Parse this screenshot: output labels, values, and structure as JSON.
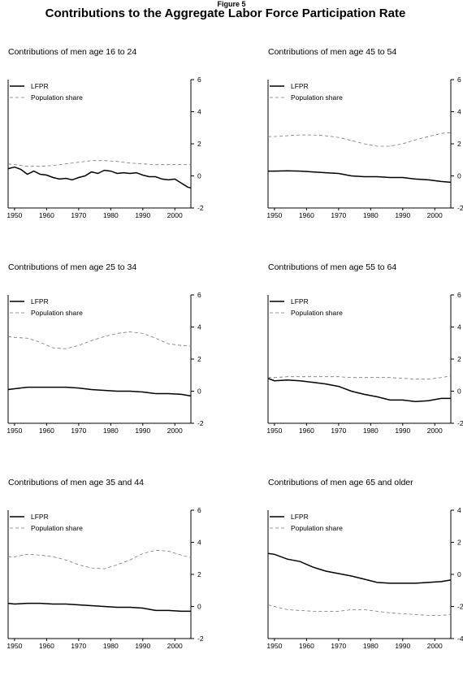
{
  "figure_label": "Figure 5",
  "title": "Contributions to the Aggregate Labor Force Participation Rate",
  "chart_data": [
    {
      "type": "line",
      "title": "Contributions of men age 16 to 24",
      "xlim": [
        1948,
        2005
      ],
      "xticks": [
        1950,
        1960,
        1970,
        1980,
        1990,
        2000
      ],
      "ylim": [
        -2,
        6
      ],
      "yticks": [
        -2,
        0,
        2,
        4,
        6
      ],
      "legend_position": "top-left",
      "series": [
        {
          "name": "LFPR",
          "style": "solid",
          "x": [
            1948,
            1950,
            1952,
            1954,
            1956,
            1958,
            1960,
            1962,
            1964,
            1966,
            1968,
            1970,
            1972,
            1974,
            1976,
            1978,
            1980,
            1982,
            1984,
            1986,
            1988,
            1990,
            1992,
            1994,
            1996,
            1998,
            2000,
            2002,
            2004,
            2005
          ],
          "y": [
            0.45,
            0.55,
            0.4,
            0.1,
            0.3,
            0.1,
            0.05,
            -0.1,
            -0.2,
            -0.15,
            -0.25,
            -0.1,
            0.0,
            0.25,
            0.15,
            0.35,
            0.3,
            0.15,
            0.2,
            0.15,
            0.2,
            0.05,
            -0.05,
            -0.05,
            -0.2,
            -0.25,
            -0.2,
            -0.45,
            -0.7,
            -0.75
          ]
        },
        {
          "name": "Population share",
          "style": "dashed",
          "x": [
            1948,
            1950,
            1954,
            1958,
            1962,
            1966,
            1970,
            1974,
            1978,
            1982,
            1986,
            1990,
            1994,
            1998,
            2002,
            2005
          ],
          "y": [
            0.75,
            0.7,
            0.6,
            0.6,
            0.65,
            0.75,
            0.85,
            0.95,
            0.95,
            0.9,
            0.8,
            0.75,
            0.7,
            0.7,
            0.7,
            0.7
          ]
        }
      ]
    },
    {
      "type": "line",
      "title": "Contributions of men age 45 to 54",
      "xlim": [
        1948,
        2005
      ],
      "xticks": [
        1950,
        1960,
        1970,
        1980,
        1990,
        2000
      ],
      "ylim": [
        -2,
        6
      ],
      "yticks": [
        -2,
        0,
        2,
        4,
        6
      ],
      "legend_position": "top-left",
      "series": [
        {
          "name": "LFPR",
          "style": "solid",
          "x": [
            1948,
            1950,
            1954,
            1958,
            1962,
            1966,
            1970,
            1974,
            1978,
            1982,
            1986,
            1990,
            1994,
            1998,
            2002,
            2005
          ],
          "y": [
            0.3,
            0.3,
            0.32,
            0.3,
            0.25,
            0.2,
            0.15,
            0.0,
            -0.05,
            -0.05,
            -0.1,
            -0.1,
            -0.2,
            -0.25,
            -0.35,
            -0.4
          ]
        },
        {
          "name": "Population share",
          "style": "dashed",
          "x": [
            1948,
            1950,
            1954,
            1958,
            1962,
            1966,
            1970,
            1974,
            1978,
            1982,
            1986,
            1990,
            1994,
            1998,
            2002,
            2005
          ],
          "y": [
            2.45,
            2.45,
            2.5,
            2.55,
            2.55,
            2.5,
            2.4,
            2.2,
            2.0,
            1.85,
            1.85,
            2.0,
            2.25,
            2.45,
            2.65,
            2.7
          ]
        }
      ]
    },
    {
      "type": "line",
      "title": "Contributions of men age 25 to 34",
      "xlim": [
        1948,
        2005
      ],
      "xticks": [
        1950,
        1960,
        1970,
        1980,
        1990,
        2000
      ],
      "ylim": [
        -2,
        6
      ],
      "yticks": [
        -2,
        0,
        2,
        4,
        6
      ],
      "legend_position": "top-left",
      "series": [
        {
          "name": "LFPR",
          "style": "solid",
          "x": [
            1948,
            1950,
            1954,
            1958,
            1962,
            1966,
            1970,
            1974,
            1978,
            1982,
            1986,
            1990,
            1994,
            1998,
            2002,
            2005
          ],
          "y": [
            0.1,
            0.15,
            0.25,
            0.25,
            0.25,
            0.25,
            0.2,
            0.1,
            0.05,
            0.0,
            0.0,
            -0.05,
            -0.15,
            -0.15,
            -0.2,
            -0.3
          ]
        },
        {
          "name": "Population share",
          "style": "dashed",
          "x": [
            1948,
            1950,
            1954,
            1958,
            1962,
            1966,
            1970,
            1974,
            1978,
            1982,
            1986,
            1990,
            1994,
            1998,
            2002,
            2005
          ],
          "y": [
            3.4,
            3.35,
            3.3,
            3.05,
            2.7,
            2.65,
            2.85,
            3.15,
            3.4,
            3.6,
            3.7,
            3.6,
            3.3,
            2.95,
            2.85,
            2.8
          ]
        }
      ]
    },
    {
      "type": "line",
      "title": "Contributions of men age 55 to 64",
      "xlim": [
        1948,
        2005
      ],
      "xticks": [
        1950,
        1960,
        1970,
        1980,
        1990,
        2000
      ],
      "ylim": [
        -2,
        6
      ],
      "yticks": [
        -2,
        0,
        2,
        4,
        6
      ],
      "legend_position": "top-left",
      "series": [
        {
          "name": "LFPR",
          "style": "solid",
          "x": [
            1948,
            1950,
            1954,
            1958,
            1962,
            1966,
            1970,
            1974,
            1978,
            1982,
            1986,
            1990,
            1994,
            1998,
            2002,
            2005
          ],
          "y": [
            0.8,
            0.65,
            0.7,
            0.65,
            0.55,
            0.45,
            0.3,
            0.0,
            -0.2,
            -0.35,
            -0.55,
            -0.55,
            -0.65,
            -0.6,
            -0.45,
            -0.45
          ]
        },
        {
          "name": "Population share",
          "style": "dashed",
          "x": [
            1948,
            1950,
            1954,
            1958,
            1962,
            1966,
            1970,
            1974,
            1978,
            1982,
            1986,
            1990,
            1994,
            1998,
            2002,
            2005
          ],
          "y": [
            0.85,
            0.85,
            0.9,
            0.9,
            0.9,
            0.9,
            0.9,
            0.85,
            0.85,
            0.85,
            0.85,
            0.8,
            0.75,
            0.75,
            0.85,
            0.95
          ]
        }
      ]
    },
    {
      "type": "line",
      "title": "Contributions of men age 35 and 44",
      "xlim": [
        1948,
        2005
      ],
      "xticks": [
        1950,
        1960,
        1970,
        1980,
        1990,
        2000
      ],
      "ylim": [
        -2,
        6
      ],
      "yticks": [
        -2,
        0,
        2,
        4,
        6
      ],
      "legend_position": "top-left",
      "series": [
        {
          "name": "LFPR",
          "style": "solid",
          "x": [
            1948,
            1950,
            1954,
            1958,
            1962,
            1966,
            1970,
            1974,
            1978,
            1982,
            1986,
            1990,
            1994,
            1998,
            2002,
            2005
          ],
          "y": [
            0.2,
            0.15,
            0.2,
            0.2,
            0.15,
            0.15,
            0.1,
            0.05,
            0.0,
            -0.05,
            -0.05,
            -0.1,
            -0.25,
            -0.25,
            -0.3,
            -0.3
          ]
        },
        {
          "name": "Population share",
          "style": "dashed",
          "x": [
            1948,
            1950,
            1954,
            1958,
            1962,
            1966,
            1970,
            1974,
            1978,
            1982,
            1986,
            1990,
            1994,
            1998,
            2002,
            2005
          ],
          "y": [
            3.1,
            3.1,
            3.25,
            3.2,
            3.1,
            2.9,
            2.6,
            2.4,
            2.35,
            2.6,
            2.9,
            3.3,
            3.5,
            3.45,
            3.2,
            3.05
          ]
        }
      ]
    },
    {
      "type": "line",
      "title": "Contributions of men age 65 and older",
      "xlim": [
        1948,
        2005
      ],
      "xticks": [
        1950,
        1960,
        1970,
        1980,
        1990,
        2000
      ],
      "ylim": [
        -4,
        4
      ],
      "yticks": [
        -4,
        -2,
        0,
        2,
        4
      ],
      "legend_position": "top-left",
      "series": [
        {
          "name": "LFPR",
          "style": "solid",
          "x": [
            1948,
            1950,
            1954,
            1958,
            1962,
            1966,
            1970,
            1974,
            1978,
            1982,
            1986,
            1990,
            1994,
            1998,
            2002,
            2005
          ],
          "y": [
            1.3,
            1.25,
            0.95,
            0.8,
            0.45,
            0.2,
            0.05,
            -0.1,
            -0.3,
            -0.5,
            -0.55,
            -0.55,
            -0.55,
            -0.5,
            -0.45,
            -0.35
          ]
        },
        {
          "name": "Population share",
          "style": "dashed",
          "x": [
            1948,
            1950,
            1954,
            1958,
            1962,
            1966,
            1970,
            1974,
            1978,
            1982,
            1986,
            1990,
            1994,
            1998,
            2002,
            2005
          ],
          "y": [
            -1.9,
            -2.0,
            -2.2,
            -2.25,
            -2.3,
            -2.3,
            -2.3,
            -2.2,
            -2.2,
            -2.3,
            -2.4,
            -2.45,
            -2.5,
            -2.55,
            -2.55,
            -2.5
          ]
        }
      ]
    }
  ]
}
